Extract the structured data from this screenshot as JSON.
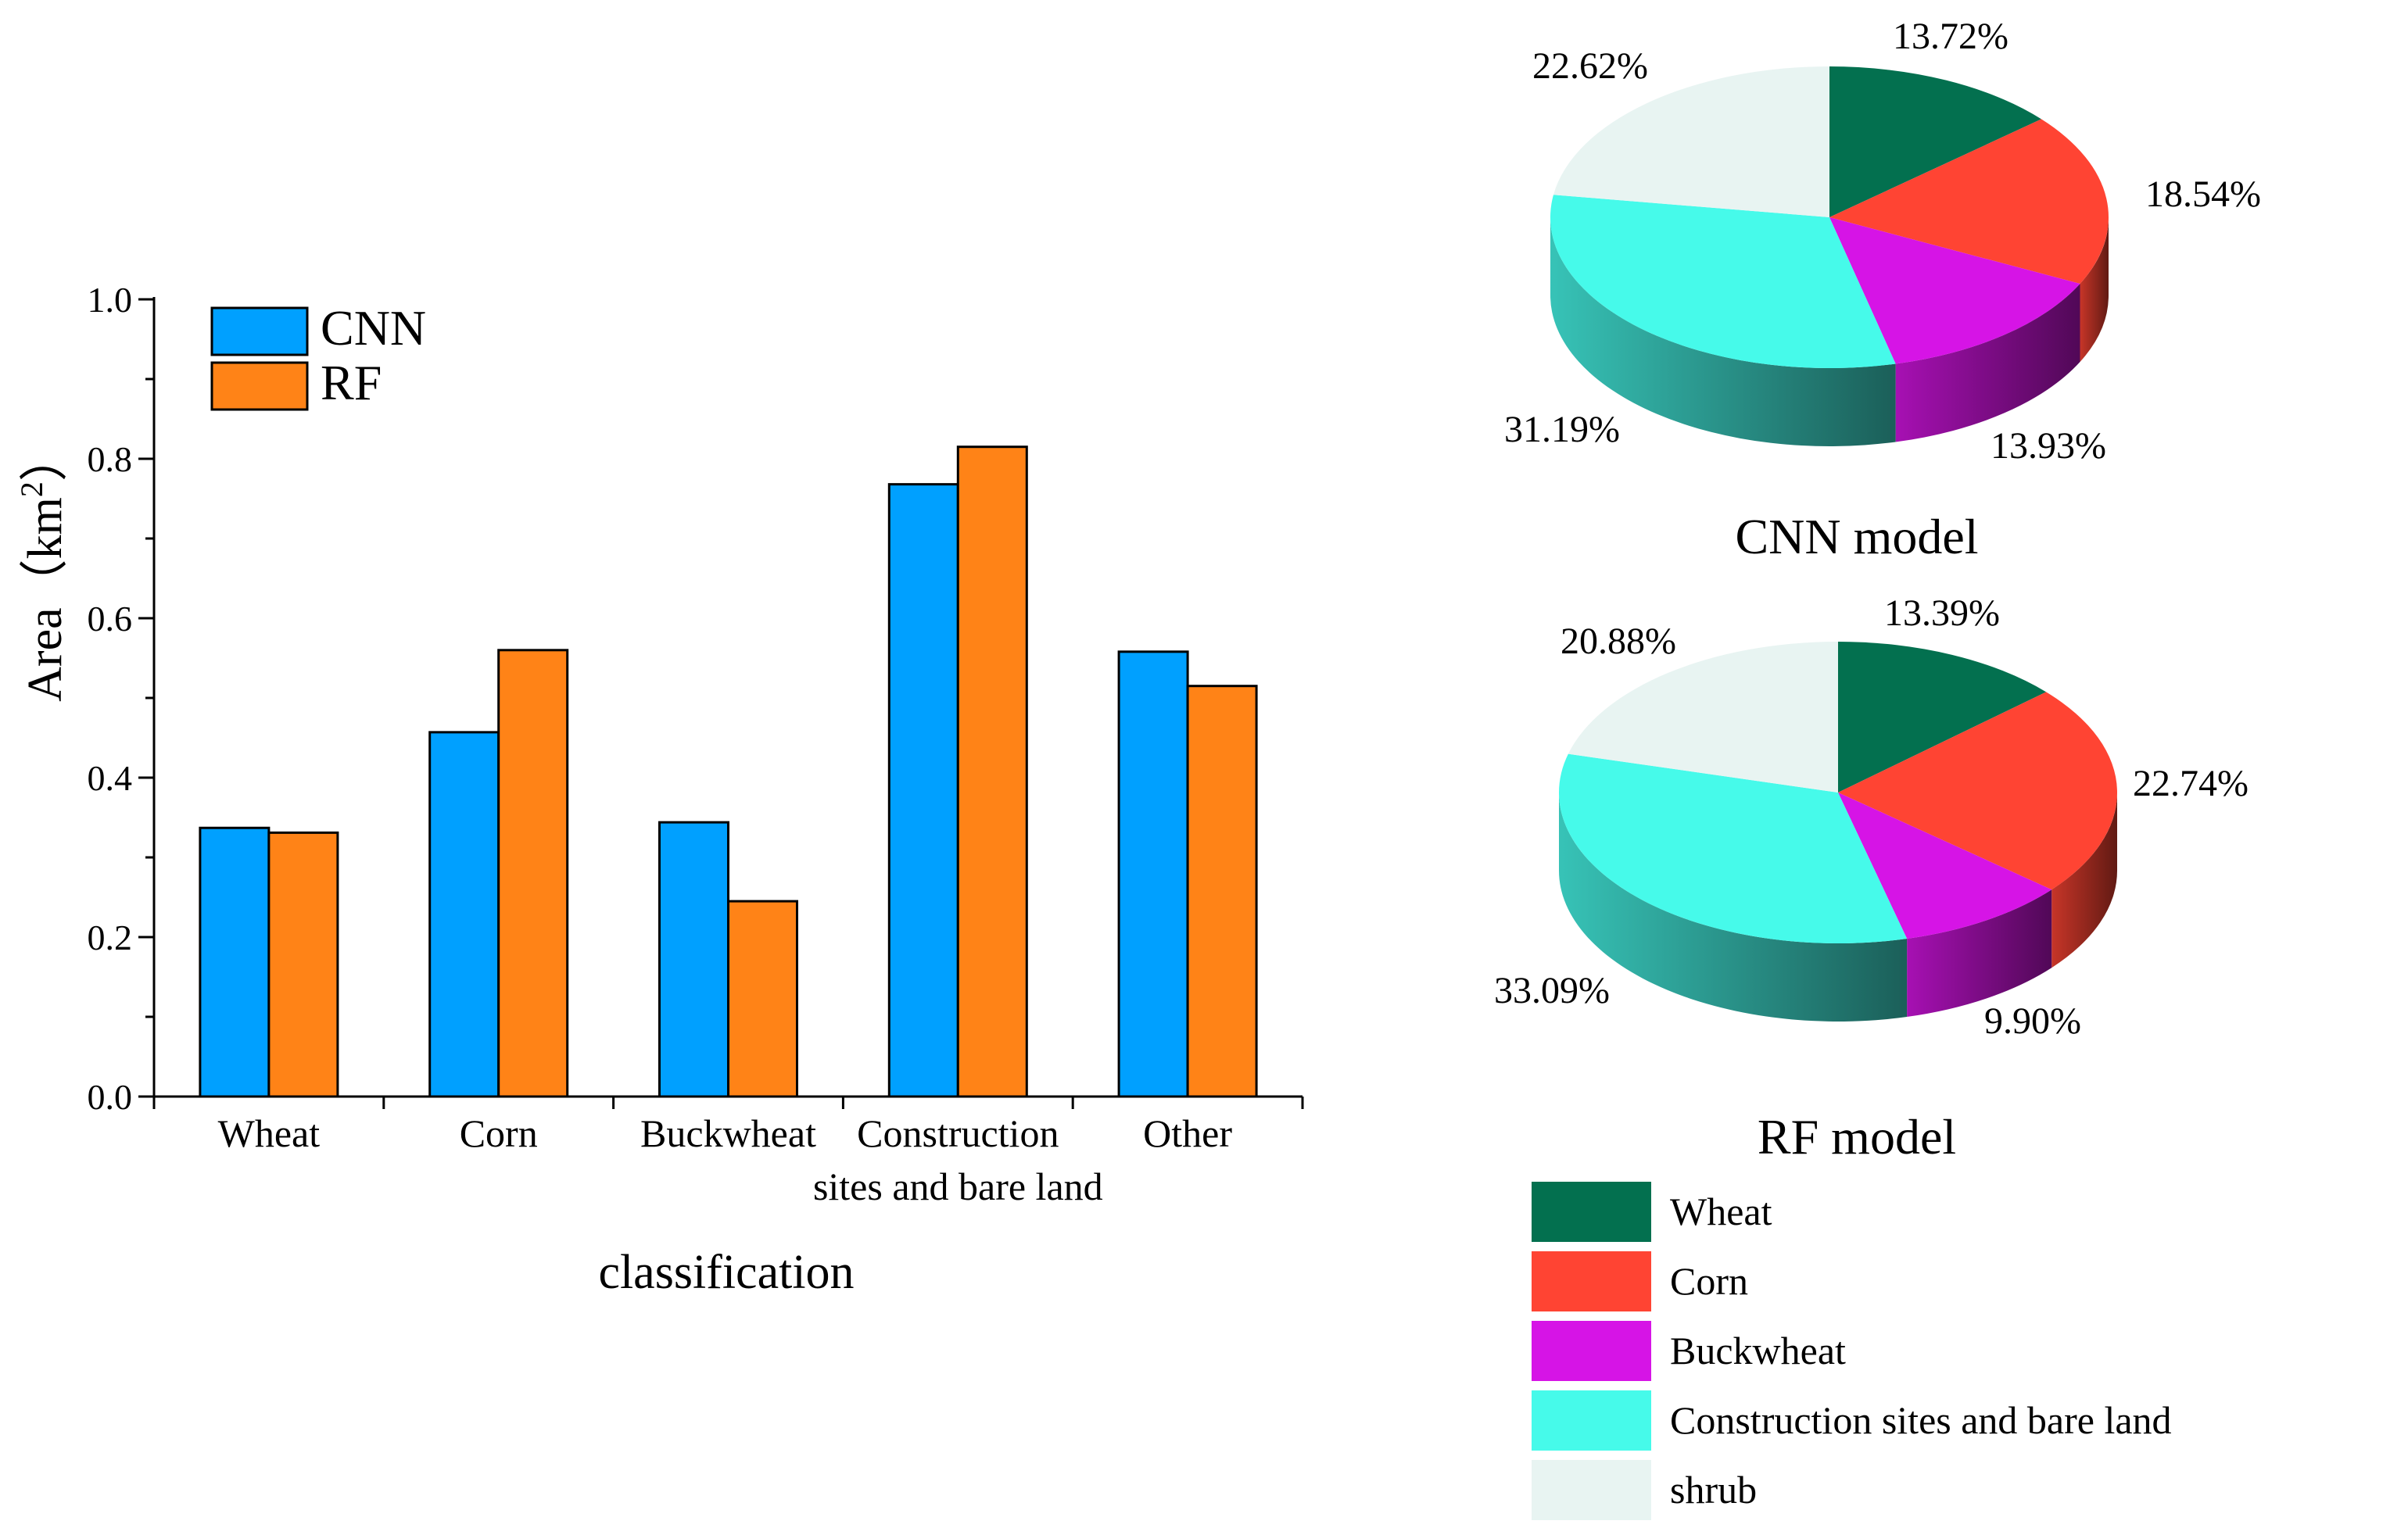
{
  "chart_data": [
    {
      "type": "bar",
      "categories": [
        "Wheat",
        "Corn",
        "Buckwheat",
        "Construction sites and bare land",
        "Other"
      ],
      "category_lines": [
        [
          "Wheat"
        ],
        [
          "Corn"
        ],
        [
          "Buckwheat"
        ],
        [
          "Construction",
          "sites and bare land"
        ],
        [
          "Other"
        ]
      ],
      "series": [
        {
          "name": "CNN",
          "values": [
            0.337,
            0.457,
            0.344,
            0.768,
            0.558
          ],
          "color": "#00a0ff"
        },
        {
          "name": "RF",
          "values": [
            0.331,
            0.56,
            0.245,
            0.815,
            0.515
          ],
          "color": "#ff8317"
        }
      ],
      "xlabel": "classification",
      "ylabel": "Area（km",
      "ylabel_sup": "2",
      "ylabel_tail": "）",
      "ylim": [
        0,
        1.0
      ],
      "yticks": [
        "0.0",
        "0.2",
        "0.4",
        "0.6",
        "0.8",
        "1.0"
      ],
      "legend_position": "top-left",
      "grid": false
    },
    {
      "type": "pie",
      "title": "CNN model",
      "labels": [
        "Wheat",
        "Corn",
        "Buckwheat",
        "Construction  sites and bare land",
        "shrub"
      ],
      "values": [
        13.72,
        18.54,
        13.93,
        31.19,
        22.62
      ],
      "value_labels": [
        "13.72%",
        "18.54%",
        "13.93%",
        "31.19%",
        "22.62%"
      ]
    },
    {
      "type": "pie",
      "title": "RF model",
      "labels": [
        "Wheat",
        "Corn",
        "Buckwheat",
        "Construction  sites and bare land",
        "shrub"
      ],
      "values": [
        13.39,
        22.74,
        9.9,
        33.09,
        20.88
      ],
      "value_labels": [
        "13.39%",
        "22.74%",
        "9.90%",
        "33.09%",
        "20.88%"
      ]
    }
  ],
  "pie_legend": {
    "items": [
      "Wheat",
      "Corn",
      "Buckwheat",
      "Construction  sites and bare land",
      "shrub"
    ],
    "colors": [
      "#03704f",
      "#ff4433",
      "#d614e6",
      "#46faea",
      "#e8f4f2"
    ]
  }
}
